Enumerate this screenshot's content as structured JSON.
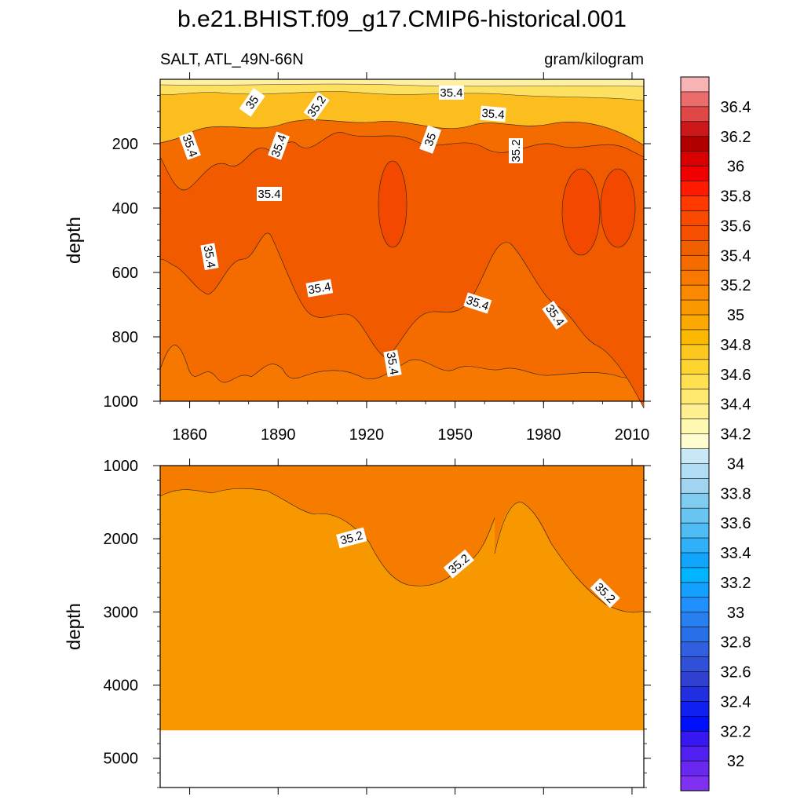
{
  "title": "b.e21.BHIST.f09_g17.CMIP6-historical.001",
  "left_string": "SALT, ATL_49N-66N",
  "right_string": "gram/kilogram",
  "chart_data": [
    {
      "type": "heatmap",
      "panel": "upper",
      "ylabel": "depth",
      "xlim": [
        1850,
        2014
      ],
      "ylim": [
        1000,
        0
      ],
      "x_ticks": [
        1860,
        1890,
        1920,
        1950,
        1980,
        2010
      ],
      "y_ticks": [
        200,
        400,
        600,
        800,
        1000
      ],
      "contour_labels": [
        "35",
        "35.2",
        "35.4",
        "35.4",
        "35.4",
        "35.4",
        "35",
        "35.2",
        "35.4",
        "35.4",
        "35.4",
        "35.4",
        "35.4",
        "35.4"
      ]
    },
    {
      "type": "heatmap",
      "panel": "lower",
      "ylabel": "depth",
      "xlim": [
        1850,
        2014
      ],
      "ylim": [
        5400,
        1000
      ],
      "y_ticks": [
        1000,
        2000,
        3000,
        4000,
        5000
      ],
      "contour_labels": [
        "35.2",
        "35.2",
        "35.2"
      ],
      "sea_floor_depth": 4620
    }
  ],
  "colorbar": {
    "labels": [
      "36.4",
      "36.2",
      "36",
      "35.8",
      "35.6",
      "35.4",
      "35.2",
      "35",
      "34.8",
      "34.6",
      "34.4",
      "34.2",
      "34",
      "33.8",
      "33.6",
      "33.4",
      "33.2",
      "33",
      "32.8",
      "32.6",
      "32.4",
      "32.2",
      "32"
    ],
    "colors": [
      "#f8b4b4",
      "#ec6c6c",
      "#e04848",
      "#cc1818",
      "#b00000",
      "#d80000",
      "#f00000",
      "#ff1a00",
      "#ff3a00",
      "#fa4a00",
      "#f45000",
      "#f06000",
      "#f46c00",
      "#f87800",
      "#fa8800",
      "#fa9800",
      "#fba800",
      "#fbb800",
      "#fcc820",
      "#fdd430",
      "#fee050",
      "#fee870",
      "#fef090",
      "#fef8b0",
      "#fffcd0",
      "#c8e8f8",
      "#b0dcf4",
      "#a0d4f0",
      "#80ccf0",
      "#68c4f0",
      "#50bcf4",
      "#30b0f8",
      "#10a4fc",
      "#00b4ff",
      "#14a0ff",
      "#2090ff",
      "#2880f0",
      "#2870e8",
      "#3060e0",
      "#3050d8",
      "#3040d0",
      "#2030e0",
      "#1020f0",
      "#0010ff",
      "#3818f0",
      "#5020f0",
      "#6828f0",
      "#8030f0"
    ],
    "series_colors": {
      "upper_shallow": "#fbbe1e",
      "upper_mid": "#f46c00",
      "upper_core": "#f25200",
      "upper_deep": "#f67800",
      "lower_bg": "#f89800",
      "lower_top": "#f67c00"
    }
  }
}
